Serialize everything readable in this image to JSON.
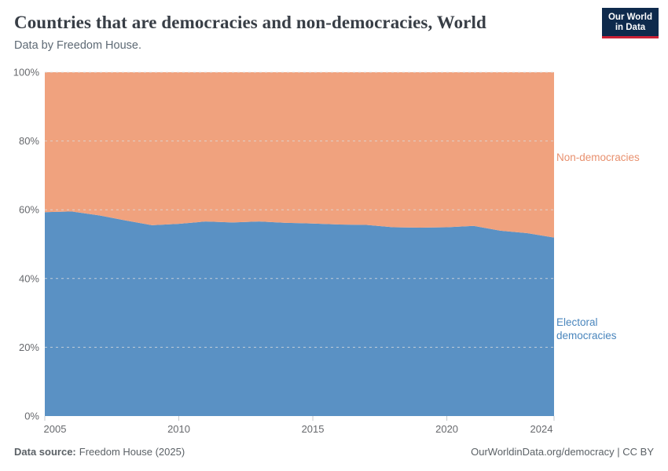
{
  "header": {
    "title": "Countries that are democracies and non-democracies, World",
    "subtitle": "Data by Freedom House.",
    "logo": {
      "line1": "Our World",
      "line2": "in Data",
      "bg_color": "#0e2a4c",
      "accent_color": "#cb2136"
    }
  },
  "chart_data": {
    "type": "area",
    "stacking": "percent",
    "title": "Countries that are democracies and non-democracies, World",
    "subtitle": "Data by Freedom House.",
    "x": [
      2005,
      2006,
      2007,
      2008,
      2009,
      2010,
      2011,
      2012,
      2013,
      2014,
      2015,
      2016,
      2017,
      2018,
      2019,
      2020,
      2021,
      2022,
      2023,
      2024
    ],
    "series": [
      {
        "name": "Electoral democracies",
        "color": "#5a91c4",
        "label_color": "#4a86bd",
        "values": [
          59.3,
          59.5,
          58.4,
          56.9,
          55.5,
          55.9,
          56.6,
          56.3,
          56.6,
          56.2,
          56.0,
          55.7,
          55.6,
          54.9,
          54.8,
          54.9,
          55.3,
          53.9,
          53.2,
          51.9
        ]
      },
      {
        "name": "Non-democracies",
        "color": "#f0a27e",
        "label_color": "#e8906e",
        "values": [
          40.7,
          40.5,
          41.6,
          43.1,
          44.5,
          44.1,
          43.4,
          43.7,
          43.4,
          43.8,
          44.0,
          44.3,
          44.4,
          45.1,
          45.2,
          45.1,
          44.7,
          46.1,
          46.8,
          48.1
        ]
      }
    ],
    "ylim": [
      0,
      100
    ],
    "yticks": [
      0,
      20,
      40,
      60,
      80,
      100
    ],
    "yticklabels": [
      "0%",
      "20%",
      "40%",
      "60%",
      "80%",
      "100%"
    ],
    "xticks": [
      2005,
      2010,
      2015,
      2020,
      2024
    ],
    "xticklabels": [
      "2005",
      "2010",
      "2015",
      "2020",
      "2024"
    ],
    "grid": "dashed-horizontal",
    "legend": "inline-right-labels"
  },
  "footer": {
    "source_label": "Data source:",
    "source_value": "Freedom House (2025)",
    "right_text": "OurWorldinData.org/democracy | CC BY"
  }
}
